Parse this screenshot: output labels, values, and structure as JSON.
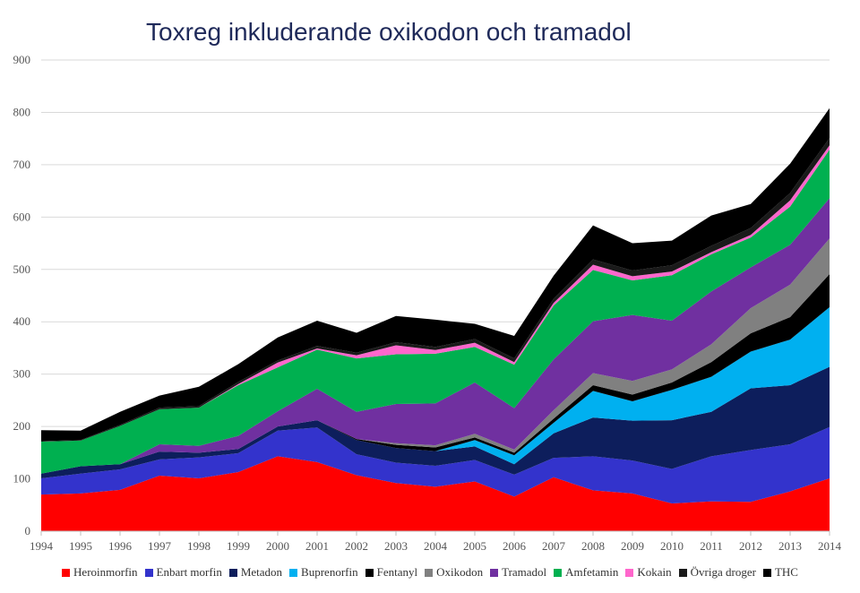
{
  "chart_data": {
    "type": "area",
    "stacked": true,
    "title": "Toxreg inkluderande oxikodon och tramadol",
    "xlabel": "",
    "ylabel": "",
    "ylim": [
      0,
      900
    ],
    "yticks": [
      0,
      100,
      200,
      300,
      400,
      500,
      600,
      700,
      800,
      900
    ],
    "grid": true,
    "legend_position": "bottom",
    "categories": [
      "1994",
      "1995",
      "1996",
      "1997",
      "1998",
      "1999",
      "2000",
      "2001",
      "2002",
      "2003",
      "2004",
      "2005",
      "2006",
      "2007",
      "2008",
      "2009",
      "2010",
      "2011",
      "2012",
      "2013",
      "2014"
    ],
    "series": [
      {
        "name": "Heroinmorfin",
        "color": "#ff0000",
        "values": [
          70,
          72,
          79,
          106,
          101,
          113,
          143,
          132,
          107,
          92,
          85,
          95,
          66,
          103,
          78,
          72,
          53,
          57,
          56,
          76,
          101
        ]
      },
      {
        "name": "Enbart morfin",
        "color": "#3333cc",
        "values": [
          31,
          38,
          39,
          31,
          40,
          36,
          49,
          66,
          40,
          39,
          40,
          41,
          42,
          37,
          65,
          63,
          66,
          86,
          99,
          90,
          98
        ]
      },
      {
        "name": "Metadon",
        "color": "#0d1e5c",
        "values": [
          9,
          14,
          10,
          15,
          9,
          8,
          8,
          14,
          27,
          28,
          28,
          26,
          20,
          47,
          74,
          76,
          93,
          85,
          118,
          113,
          115
        ]
      },
      {
        "name": "Buprenorfin",
        "color": "#00b0f0",
        "values": [
          0,
          0,
          0,
          0,
          0,
          0,
          0,
          0,
          0,
          0,
          0,
          12,
          17,
          20,
          51,
          37,
          58,
          67,
          70,
          87,
          114
        ]
      },
      {
        "name": "Fentanyl",
        "color": "#000000",
        "values": [
          0,
          0,
          0,
          0,
          0,
          0,
          0,
          0,
          2,
          6,
          7,
          5,
          5,
          8,
          11,
          13,
          14,
          28,
          35,
          43,
          63
        ]
      },
      {
        "name": "Oxikodon",
        "color": "#808080",
        "values": [
          0,
          0,
          0,
          0,
          0,
          0,
          0,
          0,
          0,
          3,
          4,
          7,
          6,
          16,
          23,
          26,
          25,
          34,
          48,
          62,
          68
        ]
      },
      {
        "name": "Tramadol",
        "color": "#7030a0",
        "values": [
          0,
          0,
          0,
          14,
          13,
          25,
          29,
          60,
          52,
          75,
          80,
          98,
          79,
          97,
          99,
          126,
          93,
          101,
          78,
          76,
          77
        ]
      },
      {
        "name": "Amfetamin",
        "color": "#00b050",
        "values": [
          61,
          49,
          73,
          67,
          73,
          97,
          84,
          75,
          102,
          95,
          95,
          68,
          83,
          103,
          98,
          66,
          87,
          71,
          57,
          73,
          93
        ]
      },
      {
        "name": "Kokain",
        "color": "#ff66cc",
        "values": [
          0,
          0,
          0,
          0,
          0,
          2,
          9,
          2,
          6,
          17,
          7,
          8,
          5,
          5,
          10,
          8,
          7,
          4,
          5,
          12,
          8
        ]
      },
      {
        "name": "Övriga droger",
        "color": "#1a1a1a",
        "values": [
          1,
          1,
          2,
          3,
          3,
          4,
          4,
          5,
          5,
          6,
          6,
          7,
          7,
          8,
          10,
          11,
          12,
          12,
          13,
          14,
          14
        ]
      },
      {
        "name": "THC",
        "color": "#000000",
        "values": [
          21,
          18,
          25,
          23,
          37,
          34,
          44,
          48,
          38,
          50,
          52,
          29,
          43,
          44,
          65,
          52,
          47,
          58,
          46,
          56,
          57
        ]
      }
    ]
  }
}
